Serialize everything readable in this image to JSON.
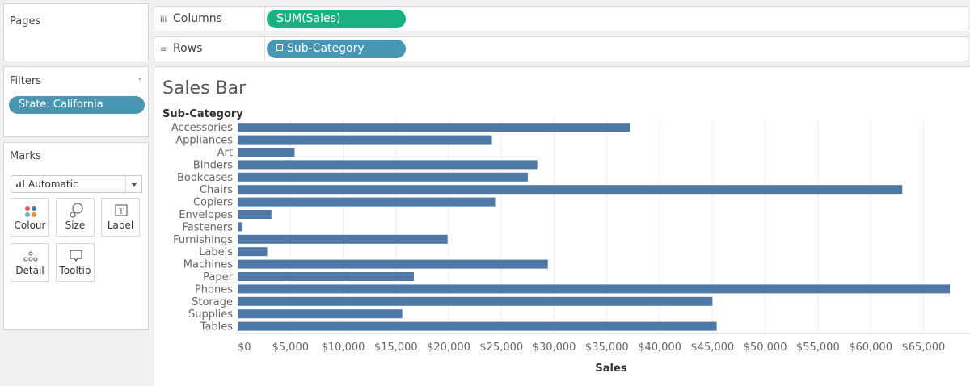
{
  "pages": {
    "title": "Pages"
  },
  "filters": {
    "title": "Filters",
    "items": [
      {
        "label": "State: California"
      }
    ]
  },
  "marks": {
    "title": "Marks",
    "mark_type": "Automatic",
    "cards": [
      {
        "label": "Colour",
        "icon": "colour-dots-icon"
      },
      {
        "label": "Size",
        "icon": "size-icon"
      },
      {
        "label": "Label",
        "icon": "text-label-icon"
      },
      {
        "label": "Detail",
        "icon": "detail-dots-icon"
      },
      {
        "label": "Tooltip",
        "icon": "tooltip-icon"
      }
    ]
  },
  "shelves": {
    "columns": {
      "label": "Columns",
      "pill": "SUM(Sales)",
      "pill_color": "#19b17f"
    },
    "rows": {
      "label": "Rows",
      "pill": "Sub-Category",
      "pill_color": "#4996b2"
    }
  },
  "view": {
    "title": "Sales Bar"
  },
  "chart_data": {
    "type": "bar",
    "orientation": "horizontal",
    "row_header": "Sub-Category",
    "xlabel": "Sales",
    "categories": [
      "Accessories",
      "Appliances",
      "Art",
      "Binders",
      "Bookcases",
      "Chairs",
      "Copiers",
      "Envelopes",
      "Fasteners",
      "Furnishings",
      "Labels",
      "Machines",
      "Paper",
      "Phones",
      "Storage",
      "Supplies",
      "Tables"
    ],
    "values": [
      37200,
      24100,
      5400,
      28400,
      27500,
      63000,
      24400,
      3200,
      450,
      19900,
      2800,
      29400,
      16700,
      67500,
      45000,
      15600,
      45400
    ],
    "xlim": [
      0,
      67500
    ],
    "ticks": [
      0,
      5000,
      10000,
      15000,
      20000,
      25000,
      30000,
      35000,
      40000,
      45000,
      50000,
      55000,
      60000,
      65000
    ],
    "tick_labels": [
      "$0",
      "$5,000",
      "$10,000",
      "$15,000",
      "$20,000",
      "$25,000",
      "$30,000",
      "$35,000",
      "$40,000",
      "$45,000",
      "$50,000",
      "$55,000",
      "$60,000",
      "$65,000"
    ],
    "bar_color": "#4e79a7",
    "grid": true
  }
}
